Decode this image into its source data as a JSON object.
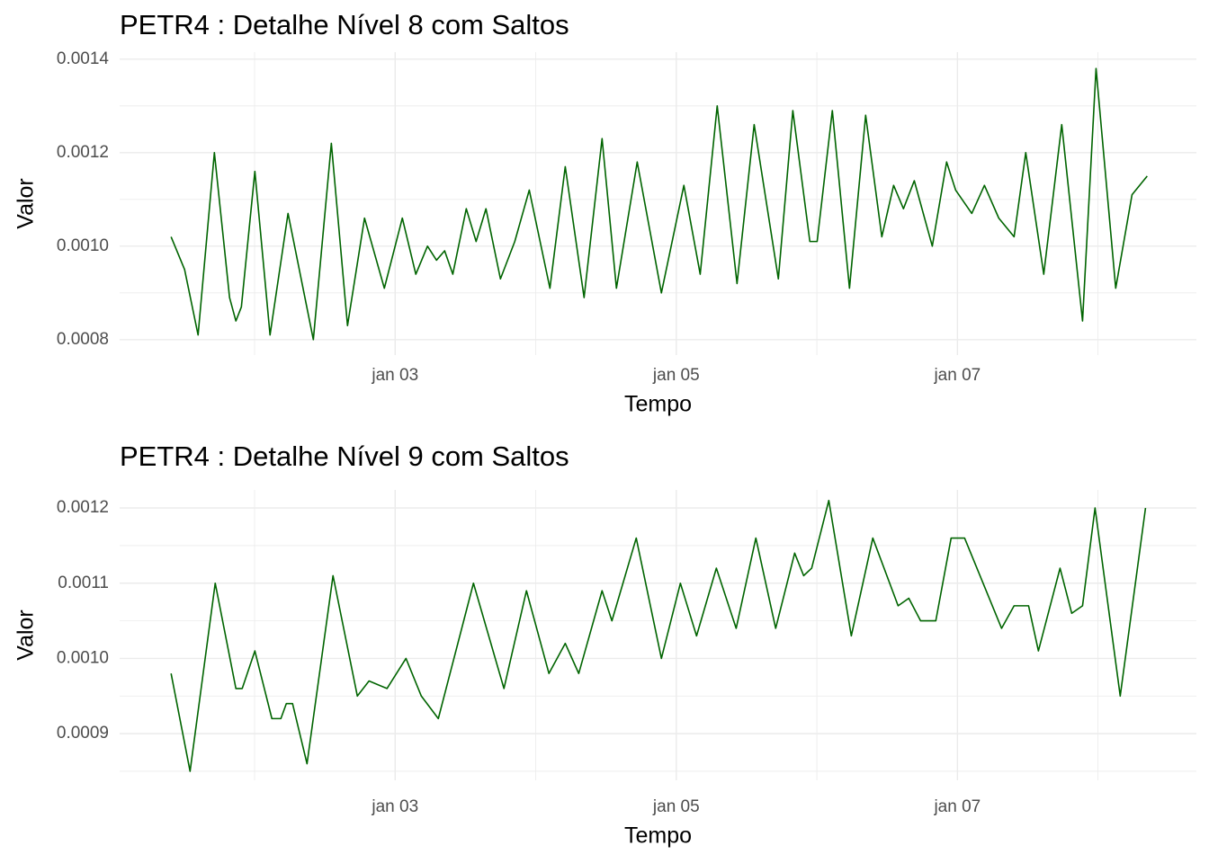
{
  "chart_data": [
    {
      "type": "line",
      "title": "PETR4 : Detalhe Nível 8 com Saltos",
      "xlabel": "Tempo",
      "ylabel": "Valor",
      "color": "#006400",
      "grid": true,
      "xlim": [
        1.04,
        8.7
      ],
      "xticks": [
        {
          "value": 3,
          "label": "jan 03"
        },
        {
          "value": 5,
          "label": "jan 05"
        },
        {
          "value": 7,
          "label": "jan 07"
        }
      ],
      "ylim": [
        0.000767,
        0.001415
      ],
      "yticks": [
        0.0008,
        {
          "value": 0.001,
          "label": "0.0010"
        },
        0.0012,
        0.0014
      ],
      "x": [
        1.406,
        1.502,
        1.598,
        1.714,
        1.822,
        1.867,
        1.906,
        2.002,
        2.11,
        2.238,
        2.418,
        2.546,
        2.661,
        2.782,
        2.923,
        3.051,
        3.147,
        3.23,
        3.294,
        3.352,
        3.41,
        3.506,
        3.576,
        3.646,
        3.749,
        3.851,
        3.954,
        4.101,
        4.21,
        4.344,
        4.472,
        4.574,
        4.722,
        4.894,
        5.054,
        5.17,
        5.291,
        5.432,
        5.554,
        5.726,
        5.829,
        5.95,
        6.002,
        6.11,
        6.232,
        6.347,
        6.462,
        6.546,
        6.616,
        6.693,
        6.821,
        6.923,
        6.987,
        7.102,
        7.192,
        7.294,
        7.403,
        7.486,
        7.614,
        7.742,
        7.89,
        7.986,
        8.126,
        8.242,
        8.35
      ],
      "values": [
        0.00102,
        0.00095,
        0.00081,
        0.0012,
        0.00089,
        0.00084,
        0.00087,
        0.00116,
        0.00081,
        0.00107,
        0.0008,
        0.00122,
        0.00083,
        0.00106,
        0.00091,
        0.00106,
        0.00094,
        0.001,
        0.00097,
        0.00099,
        0.00094,
        0.00108,
        0.00101,
        0.00108,
        0.00093,
        0.00101,
        0.00112,
        0.00091,
        0.00117,
        0.00089,
        0.00123,
        0.00091,
        0.00118,
        0.0009,
        0.00113,
        0.00094,
        0.0013,
        0.00092,
        0.00126,
        0.00093,
        0.00129,
        0.00101,
        0.00101,
        0.00129,
        0.00091,
        0.00128,
        0.00102,
        0.00113,
        0.00108,
        0.00114,
        0.001,
        0.00118,
        0.00112,
        0.00107,
        0.00113,
        0.00106,
        0.00102,
        0.0012,
        0.00094,
        0.00126,
        0.00084,
        0.00138,
        0.00091,
        0.00111,
        0.00115
      ]
    },
    {
      "type": "line",
      "title": "PETR4 : Detalhe Nível 9 com Saltos",
      "xlabel": "Tempo",
      "ylabel": "Valor",
      "color": "#006400",
      "grid": true,
      "xlim": [
        1.04,
        8.7
      ],
      "xticks": [
        {
          "value": 3,
          "label": "jan 03"
        },
        {
          "value": 5,
          "label": "jan 05"
        },
        {
          "value": 7,
          "label": "jan 07"
        }
      ],
      "ylim": [
        0.000838,
        0.001224
      ],
      "yticks": [
        0.0009,
        {
          "value": 0.001,
          "label": "0.0010"
        },
        0.0011,
        0.0012
      ],
      "x": [
        1.406,
        1.541,
        1.72,
        1.867,
        1.912,
        2.002,
        2.123,
        2.187,
        2.226,
        2.27,
        2.373,
        2.558,
        2.731,
        2.814,
        2.942,
        3.077,
        3.186,
        3.307,
        3.557,
        3.774,
        3.934,
        4.094,
        4.21,
        4.306,
        4.472,
        4.542,
        4.715,
        4.894,
        5.029,
        5.144,
        5.285,
        5.426,
        5.566,
        5.707,
        5.842,
        5.906,
        5.963,
        6.085,
        6.245,
        6.398,
        6.578,
        6.654,
        6.738,
        6.846,
        6.955,
        7.051,
        7.314,
        7.403,
        7.506,
        7.576,
        7.73,
        7.813,
        7.89,
        7.979,
        8.158,
        8.338
      ],
      "values": [
        0.00098,
        0.00085,
        0.0011,
        0.00096,
        0.00096,
        0.00101,
        0.00092,
        0.00092,
        0.00094,
        0.00094,
        0.00086,
        0.00111,
        0.00095,
        0.00097,
        0.00096,
        0.001,
        0.00095,
        0.00092,
        0.0011,
        0.00096,
        0.00109,
        0.00098,
        0.00102,
        0.00098,
        0.00109,
        0.00105,
        0.00116,
        0.001,
        0.0011,
        0.00103,
        0.00112,
        0.00104,
        0.00116,
        0.00104,
        0.00114,
        0.00111,
        0.00112,
        0.00121,
        0.00103,
        0.00116,
        0.00107,
        0.00108,
        0.00105,
        0.00105,
        0.00116,
        0.00116,
        0.00104,
        0.00107,
        0.00107,
        0.00101,
        0.00112,
        0.00106,
        0.00107,
        0.0012,
        0.00095,
        0.0012
      ]
    }
  ]
}
